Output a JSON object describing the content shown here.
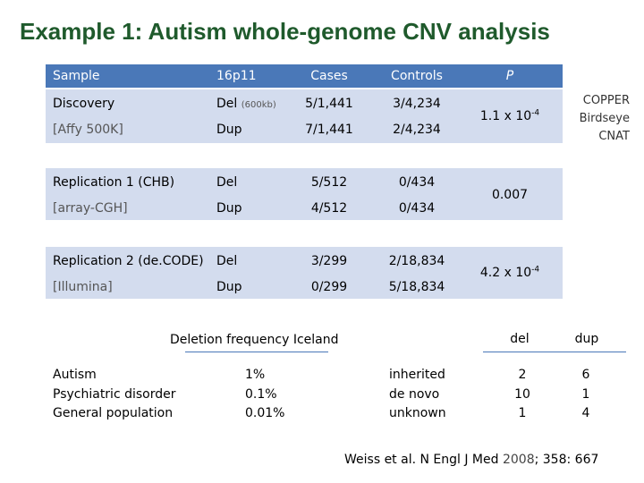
{
  "title": "Example 1: Autism whole-genome CNV analysis",
  "table": {
    "headers": {
      "sample": "Sample",
      "locus": "16p11",
      "cases": "Cases",
      "controls": "Controls",
      "p": "P"
    },
    "groups": [
      {
        "rows": [
          {
            "sample": "Discovery",
            "type": "Del",
            "note": "(600kb)",
            "cases": "5/1,441",
            "controls": "3/4,234"
          },
          {
            "sample": "[Affy 500K]",
            "type": "Dup",
            "note": "",
            "cases": "7/1,441",
            "controls": "2/4,234"
          }
        ],
        "p_base": "1.1 x 10",
        "p_exp": "-4"
      },
      {
        "rows": [
          {
            "sample": "Replication 1 (CHB)",
            "type": "Del",
            "note": "",
            "cases": "5/512",
            "controls": "0/434"
          },
          {
            "sample": "[array-CGH]",
            "type": "Dup",
            "note": "",
            "cases": "4/512",
            "controls": "0/434"
          }
        ],
        "p_base": "0.007",
        "p_exp": ""
      },
      {
        "rows": [
          {
            "sample": "Replication 2 (de.CODE)",
            "type": "Del",
            "note": "",
            "cases": "3/299",
            "controls": "2/18,834"
          },
          {
            "sample": "[Illumina]",
            "type": "Dup",
            "note": "",
            "cases": "0/299",
            "controls": "5/18,834"
          }
        ],
        "p_base": "4.2 x 10",
        "p_exp": "-4"
      }
    ]
  },
  "copper_note": [
    "COPPER",
    "Birdseye",
    "CNAT"
  ],
  "deletion_frequency": {
    "heading": "Deletion frequency Iceland",
    "groups": [
      "Autism",
      "Psychiatric disorder",
      "General population"
    ],
    "values": [
      "1%",
      "0.1%",
      "0.01%"
    ]
  },
  "inheritance": {
    "col_del": "del",
    "col_dup": "dup",
    "rows": [
      {
        "label": "inherited",
        "del": "2",
        "dup": "6"
      },
      {
        "label": "de novo",
        "del": "10",
        "dup": "1"
      },
      {
        "label": "unknown",
        "del": "1",
        "dup": "4"
      }
    ]
  },
  "reference": {
    "text": "Weiss et al. N Engl J Med",
    "year": "2008",
    "rest": "; 358: 667"
  }
}
